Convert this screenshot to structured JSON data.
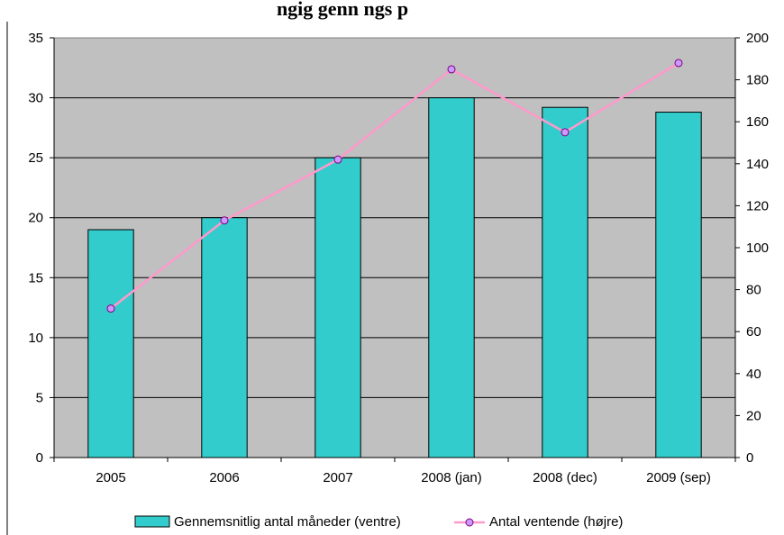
{
  "chart_data": {
    "type": "bar",
    "title": "ngig genn  ngs        p",
    "categories": [
      "2005",
      "2006",
      "2007",
      "2008 (jan)",
      "2008 (dec)",
      "2009 (sep)"
    ],
    "series": [
      {
        "name": "Gennemsnitlig antal måneder (ventre)",
        "type": "bar",
        "axis": "left",
        "color": "#33CCCC",
        "values": [
          19,
          20,
          25,
          30,
          29.2,
          28.8
        ]
      },
      {
        "name": "Antal ventende (højre)",
        "type": "line",
        "axis": "right",
        "color": "#FF99CC",
        "marker_fill": "#CC99FF",
        "values": [
          71,
          113,
          142,
          185,
          155,
          188
        ]
      }
    ],
    "y_left": {
      "min": 0,
      "max": 35,
      "step": 5,
      "ticks": [
        "0",
        "5",
        "10",
        "15",
        "20",
        "25",
        "30",
        "35"
      ]
    },
    "y_right": {
      "min": 0,
      "max": 200,
      "step": 20,
      "ticks": [
        "0",
        "20",
        "40",
        "60",
        "80",
        "100",
        "120",
        "140",
        "160",
        "180",
        "200"
      ]
    },
    "plot_background": "#C0C0C0",
    "grid": true,
    "legend_position": "bottom"
  }
}
